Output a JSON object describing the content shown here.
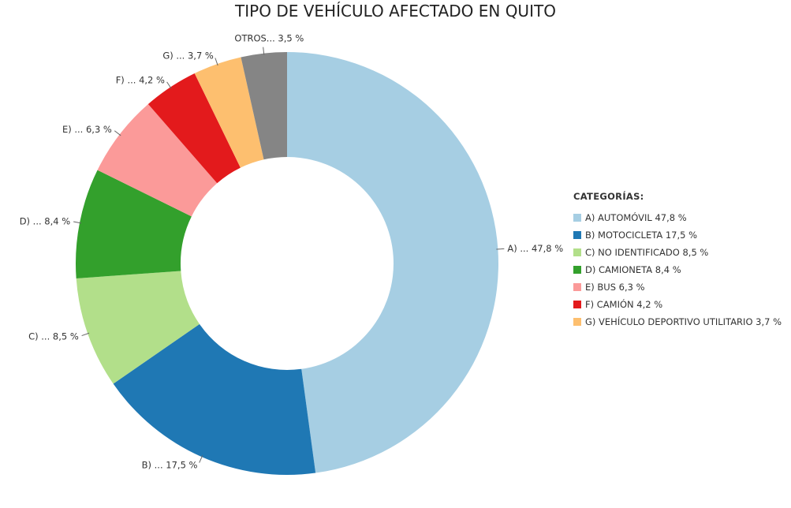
{
  "chart_data": {
    "type": "pie",
    "donut": true,
    "title": "TIPO DE VEHÍCULO AFECTADO EN QUITO",
    "legend_title": "CATEGORÍAS:",
    "legend_position": "right",
    "slices": [
      {
        "legend": "A) AUTOMÓVIL 47,8 %",
        "label": "A) ... 47,8 %",
        "value": 47.8,
        "color": "#a6cee3"
      },
      {
        "legend": "B) MOTOCICLETA 17,5 %",
        "label": "B) ... 17,5 %",
        "value": 17.5,
        "color": "#1f78b4"
      },
      {
        "legend": "C) NO IDENTIFICADO 8,5 %",
        "label": "C) ... 8,5 %",
        "value": 8.5,
        "color": "#b2df8a"
      },
      {
        "legend": "D) CAMIONETA 8,4 %",
        "label": "D) ... 8,4 %",
        "value": 8.4,
        "color": "#33a02c"
      },
      {
        "legend": "E) BUS 6,3 %",
        "label": "E) ... 6,3 %",
        "value": 6.3,
        "color": "#fb9a99"
      },
      {
        "legend": "F) CAMIÓN 4,2 %",
        "label": "F) ... 4,2 %",
        "value": 4.2,
        "color": "#e31a1c"
      },
      {
        "legend": "G) VEHÍCULO DEPORTIVO UTILITARIO 3,7 %",
        "label": "G) ... 3,7 %",
        "value": 3.7,
        "color": "#fdbf6f"
      },
      {
        "legend": null,
        "label": "OTROS... 3,5 %",
        "value": 3.5,
        "color": "#858585"
      }
    ]
  }
}
